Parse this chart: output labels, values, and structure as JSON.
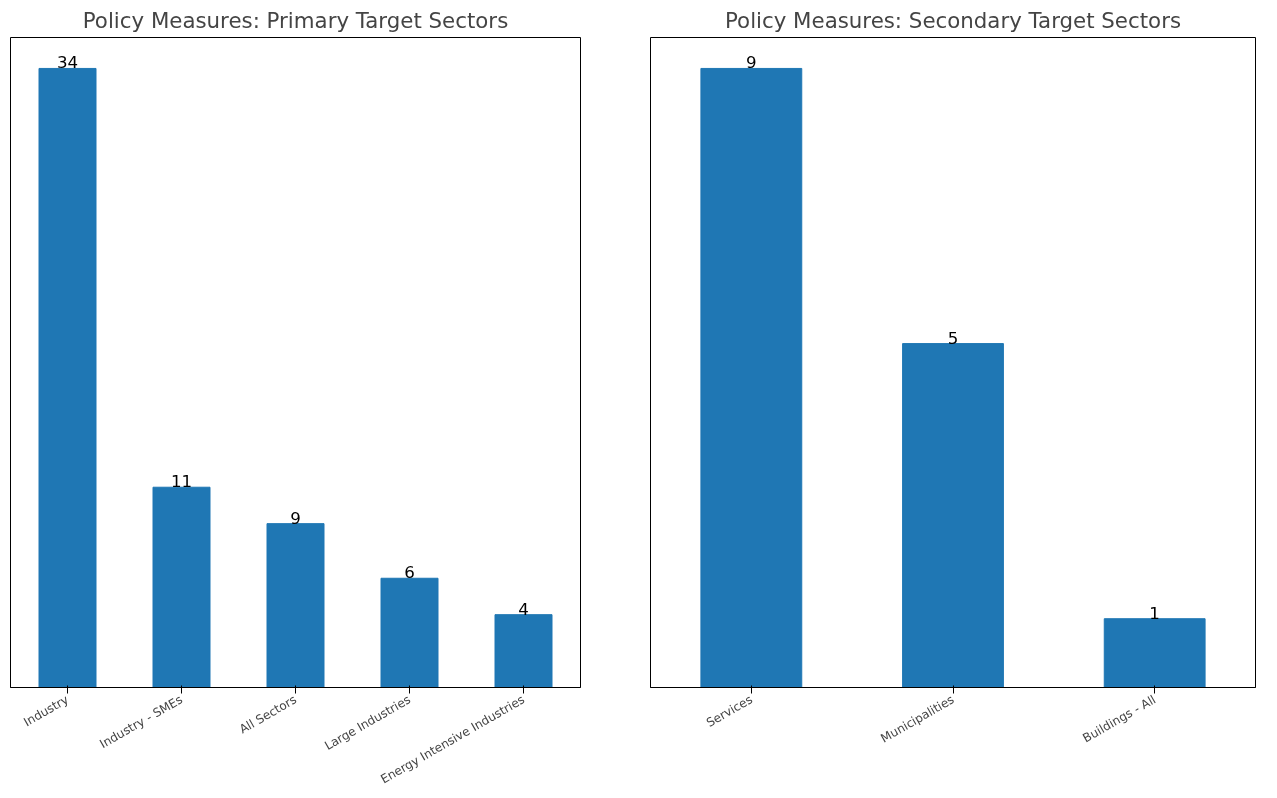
{
  "chart_data": [
    {
      "type": "bar",
      "title": "Policy Measures: Primary Target Sectors",
      "categories": [
        "Industry",
        "Industry - SMEs",
        "All Sectors",
        "Large Industries",
        "Energy Intensive Industries"
      ],
      "values": [
        34,
        11,
        9,
        6,
        4
      ],
      "color": "#1f77b4",
      "ylim": [
        0,
        35.7
      ],
      "data_labels": true,
      "grid": false,
      "tick_labels": "x"
    },
    {
      "type": "bar",
      "title": "Policy Measures: Secondary Target Sectors",
      "categories": [
        "Services",
        "Municipalities",
        "Buildings - All"
      ],
      "values": [
        9,
        5,
        1
      ],
      "color": "#1f77b4",
      "ylim": [
        0,
        9.45
      ],
      "data_labels": true,
      "grid": false,
      "tick_labels": "x"
    }
  ]
}
